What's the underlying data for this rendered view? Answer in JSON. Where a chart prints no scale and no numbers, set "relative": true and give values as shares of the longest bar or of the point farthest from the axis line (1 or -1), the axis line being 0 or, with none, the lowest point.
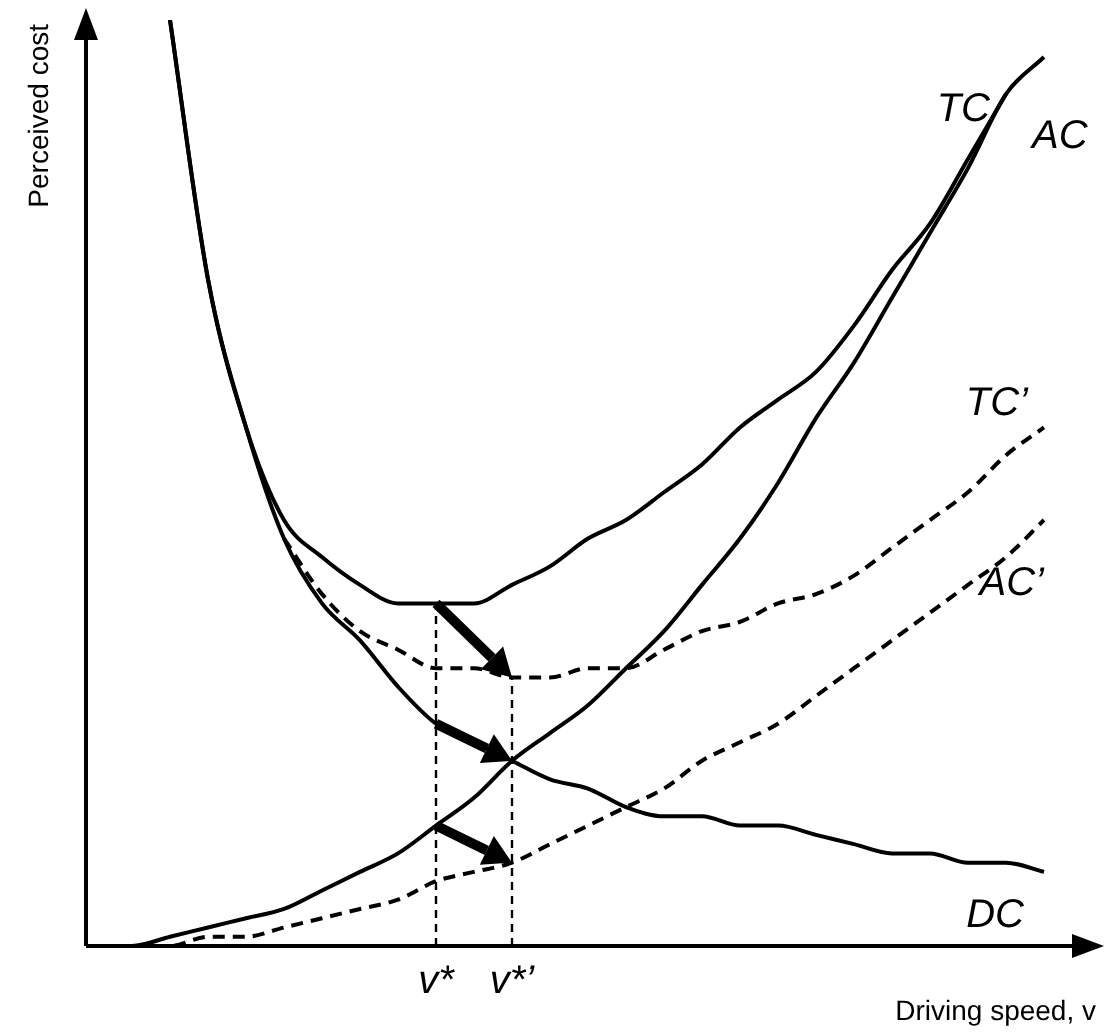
{
  "chart_data": {
    "type": "line",
    "relative": true,
    "xlabel": "Driving speed, v",
    "ylabel": "Perceived cost",
    "legend": false,
    "categories": [
      null,
      null,
      null,
      null,
      null,
      null,
      null,
      null,
      null,
      "v*",
      null,
      "v*’",
      null,
      null,
      null,
      null,
      null,
      null,
      null,
      null,
      null,
      null,
      null,
      null,
      null,
      null
    ],
    "series": [
      {
        "name": "TC",
        "color": "#000000",
        "line_style": "solid",
        "values": [
          null,
          null,
          1.0,
          0.72,
          0.56,
          0.46,
          0.42,
          0.39,
          0.37,
          0.37,
          0.37,
          0.39,
          0.41,
          0.44,
          0.46,
          0.49,
          0.52,
          0.56,
          0.59,
          0.62,
          0.67,
          0.73,
          0.78,
          0.85,
          0.92,
          null
        ]
      },
      {
        "name": "AC",
        "color": "#000000",
        "line_style": "solid",
        "values": [
          0.0,
          0.0,
          0.01,
          0.02,
          0.03,
          0.04,
          0.06,
          0.08,
          0.1,
          0.13,
          0.16,
          0.2,
          0.23,
          0.26,
          0.3,
          0.34,
          0.39,
          0.44,
          0.5,
          0.57,
          0.63,
          0.7,
          0.77,
          0.84,
          0.92,
          0.96
        ]
      },
      {
        "name": "TC’",
        "color": "#000000",
        "line_style": "dashed",
        "values": [
          null,
          null,
          null,
          null,
          null,
          0.44,
          0.38,
          0.34,
          0.32,
          0.3,
          0.3,
          0.29,
          0.29,
          0.3,
          0.3,
          0.32,
          0.34,
          0.35,
          0.37,
          0.38,
          0.4,
          0.43,
          0.46,
          0.49,
          0.53,
          0.56
        ]
      },
      {
        "name": "AC’",
        "color": "#000000",
        "line_style": "dashed",
        "values": [
          0.0,
          0.0,
          0.0,
          0.01,
          0.01,
          0.02,
          0.03,
          0.04,
          0.05,
          0.07,
          0.08,
          0.09,
          0.11,
          0.13,
          0.15,
          0.17,
          0.2,
          0.22,
          0.24,
          0.27,
          0.3,
          0.33,
          0.36,
          0.39,
          0.42,
          0.46
        ]
      },
      {
        "name": "DC",
        "color": "#000000",
        "line_style": "solid",
        "values": [
          null,
          null,
          1.0,
          0.72,
          0.56,
          0.44,
          0.37,
          0.33,
          0.28,
          0.24,
          0.22,
          0.2,
          0.18,
          0.17,
          0.15,
          0.14,
          0.14,
          0.13,
          0.13,
          0.12,
          0.11,
          0.1,
          0.1,
          0.09,
          0.09,
          0.08
        ]
      }
    ]
  }
}
